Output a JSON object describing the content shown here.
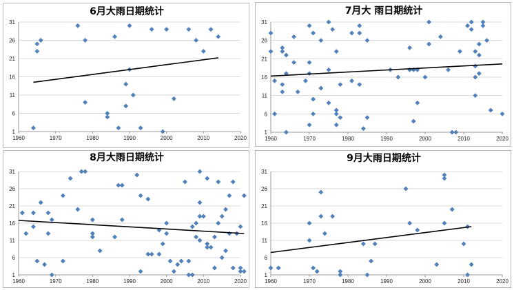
{
  "chart_data": [
    {
      "type": "scatter",
      "title": "6月大雨日期统计",
      "xlim": [
        1960,
        2020
      ],
      "ylim": [
        1,
        31
      ],
      "xticks": [
        1960,
        1970,
        1980,
        1990,
        2000,
        2010,
        2020
      ],
      "yticks": [
        1,
        6,
        11,
        16,
        21,
        26,
        31
      ],
      "grid": "horizontal",
      "points": [
        [
          1964,
          2
        ],
        [
          1965,
          23
        ],
        [
          1965,
          25
        ],
        [
          1966,
          26
        ],
        [
          1976,
          30
        ],
        [
          1978,
          26
        ],
        [
          1978,
          9
        ],
        [
          1984,
          6
        ],
        [
          1984,
          5
        ],
        [
          1986,
          27
        ],
        [
          1987,
          2
        ],
        [
          1989,
          14
        ],
        [
          1989,
          8
        ],
        [
          1990,
          30
        ],
        [
          1990,
          18
        ],
        [
          1991,
          11
        ],
        [
          1993,
          2
        ],
        [
          1996,
          29
        ],
        [
          1999,
          1
        ],
        [
          2000,
          29
        ],
        [
          2002,
          10
        ],
        [
          2006,
          29
        ],
        [
          2008,
          26
        ],
        [
          2010,
          23
        ],
        [
          2012,
          29
        ],
        [
          2014,
          27
        ]
      ],
      "trendline": [
        [
          1964,
          14.5
        ],
        [
          2014,
          21.2
        ]
      ]
    },
    {
      "type": "scatter",
      "title": "7月大 雨日期统计",
      "xlim": [
        1960,
        2020
      ],
      "ylim": [
        1,
        31
      ],
      "xticks": [
        1960,
        1970,
        1980,
        1990,
        2000,
        2010,
        2020
      ],
      "yticks": [
        1,
        6,
        11,
        16,
        21,
        26,
        31
      ],
      "grid": "horizontal",
      "points": [
        [
          1960,
          28
        ],
        [
          1960,
          23
        ],
        [
          1961,
          15
        ],
        [
          1961,
          6
        ],
        [
          1963,
          24
        ],
        [
          1963,
          23
        ],
        [
          1963,
          14
        ],
        [
          1963,
          12
        ],
        [
          1964,
          22
        ],
        [
          1964,
          17
        ],
        [
          1964,
          1
        ],
        [
          1966,
          27
        ],
        [
          1966,
          20
        ],
        [
          1967,
          12
        ],
        [
          1969,
          15
        ],
        [
          1970,
          30
        ],
        [
          1970,
          20
        ],
        [
          1970,
          17
        ],
        [
          1970,
          3
        ],
        [
          1971,
          28
        ],
        [
          1971,
          10
        ],
        [
          1971,
          6
        ],
        [
          1973,
          26
        ],
        [
          1973,
          13
        ],
        [
          1975,
          31
        ],
        [
          1975,
          18
        ],
        [
          1975,
          9
        ],
        [
          1976,
          29
        ],
        [
          1977,
          23
        ],
        [
          1977,
          7
        ],
        [
          1977,
          6
        ],
        [
          1977,
          3
        ],
        [
          1978,
          14
        ],
        [
          1978,
          5
        ],
        [
          1981,
          28
        ],
        [
          1981,
          15
        ],
        [
          1983,
          30
        ],
        [
          1983,
          28
        ],
        [
          1983,
          14
        ],
        [
          1984,
          2
        ],
        [
          1985,
          26
        ],
        [
          1985,
          5
        ],
        [
          1991,
          18
        ],
        [
          1993,
          16
        ],
        [
          1996,
          24
        ],
        [
          1996,
          18
        ],
        [
          1997,
          18
        ],
        [
          1997,
          4
        ],
        [
          1998,
          18
        ],
        [
          1998,
          9
        ],
        [
          2000,
          16
        ],
        [
          2001,
          31
        ],
        [
          2001,
          25
        ],
        [
          2004,
          27
        ],
        [
          2006,
          18
        ],
        [
          2007,
          1
        ],
        [
          2008,
          1
        ],
        [
          2009,
          23
        ],
        [
          2011,
          30
        ],
        [
          2012,
          31
        ],
        [
          2012,
          29
        ],
        [
          2013,
          23
        ],
        [
          2013,
          19
        ],
        [
          2013,
          16
        ],
        [
          2013,
          11
        ],
        [
          2014,
          22
        ],
        [
          2014,
          17
        ],
        [
          2014,
          25
        ],
        [
          2015,
          31
        ],
        [
          2015,
          30
        ],
        [
          2016,
          26
        ],
        [
          2017,
          7
        ],
        [
          2020,
          6
        ]
      ],
      "trendline": [
        [
          1960,
          16.3
        ],
        [
          2020,
          19.6
        ]
      ]
    },
    {
      "type": "scatter",
      "title": "8月大雨日期统计",
      "xlim": [
        1960,
        2020
      ],
      "ylim": [
        1,
        31
      ],
      "xticks": [
        1960,
        1970,
        1980,
        1990,
        2000,
        2010,
        2020
      ],
      "yticks": [
        1,
        6,
        11,
        16,
        21,
        26,
        31
      ],
      "grid": "horizontal",
      "points": [
        [
          1961,
          19
        ],
        [
          1962,
          13
        ],
        [
          1964,
          19
        ],
        [
          1964,
          15
        ],
        [
          1965,
          5
        ],
        [
          1966,
          22
        ],
        [
          1967,
          4
        ],
        [
          1968,
          19
        ],
        [
          1968,
          13
        ],
        [
          1969,
          17
        ],
        [
          1969,
          1
        ],
        [
          1972,
          24
        ],
        [
          1972,
          5
        ],
        [
          1974,
          29
        ],
        [
          1976,
          20
        ],
        [
          1977,
          31
        ],
        [
          1978,
          31
        ],
        [
          1980,
          17
        ],
        [
          1980,
          13
        ],
        [
          1980,
          12
        ],
        [
          1982,
          8
        ],
        [
          1986,
          12
        ],
        [
          1987,
          27
        ],
        [
          1988,
          27
        ],
        [
          1988,
          17
        ],
        [
          1992,
          30
        ],
        [
          1993,
          24
        ],
        [
          1993,
          2
        ],
        [
          1995,
          23
        ],
        [
          1995,
          7
        ],
        [
          1996,
          7
        ],
        [
          1998,
          14
        ],
        [
          1998,
          7
        ],
        [
          1999,
          10
        ],
        [
          2000,
          16
        ],
        [
          2000,
          13
        ],
        [
          2001,
          5
        ],
        [
          2002,
          2
        ],
        [
          2003,
          4
        ],
        [
          2004,
          5
        ],
        [
          2005,
          28
        ],
        [
          2006,
          1
        ],
        [
          2006,
          5
        ],
        [
          2007,
          15
        ],
        [
          2007,
          1
        ],
        [
          2008,
          16
        ],
        [
          2008,
          12
        ],
        [
          2009,
          31
        ],
        [
          2009,
          22
        ],
        [
          2009,
          18
        ],
        [
          2009,
          11
        ],
        [
          2010,
          18
        ],
        [
          2011,
          29
        ],
        [
          2011,
          10
        ],
        [
          2011,
          9
        ],
        [
          2012,
          9
        ],
        [
          2013,
          12
        ],
        [
          2013,
          3
        ],
        [
          2014,
          28
        ],
        [
          2014,
          16
        ],
        [
          2015,
          18
        ],
        [
          2015,
          6
        ],
        [
          2016,
          20
        ],
        [
          2016,
          8
        ],
        [
          2017,
          24
        ],
        [
          2017,
          13
        ],
        [
          2018,
          28
        ],
        [
          2018,
          3
        ],
        [
          2019,
          13
        ],
        [
          2020,
          3
        ],
        [
          2020,
          2
        ],
        [
          2020,
          15
        ],
        [
          2021,
          24
        ],
        [
          2021,
          2
        ]
      ],
      "trendline": [
        [
          1960,
          16.8
        ],
        [
          2021,
          13.0
        ]
      ]
    },
    {
      "type": "scatter",
      "title": "9月大雨日期统计",
      "xlim": [
        1960,
        2020
      ],
      "ylim": [
        1,
        31
      ],
      "xticks": [
        1960,
        1970,
        1980,
        1990,
        2000,
        2010,
        2020
      ],
      "yticks": [
        1,
        6,
        11,
        16,
        21,
        26,
        31
      ],
      "grid": "horizontal",
      "points": [
        [
          1960,
          3
        ],
        [
          1962,
          3
        ],
        [
          1970,
          16
        ],
        [
          1970,
          11
        ],
        [
          1971,
          3
        ],
        [
          1972,
          2
        ],
        [
          1973,
          18
        ],
        [
          1973,
          25
        ],
        [
          1974,
          13
        ],
        [
          1976,
          18
        ],
        [
          1978,
          2
        ],
        [
          1978,
          1
        ],
        [
          1984,
          10
        ],
        [
          1985,
          1
        ],
        [
          1986,
          5
        ],
        [
          1987,
          10
        ],
        [
          1995,
          26
        ],
        [
          1996,
          16
        ],
        [
          1998,
          14
        ],
        [
          2003,
          4
        ],
        [
          2005,
          30
        ],
        [
          2005,
          29
        ],
        [
          2005,
          16
        ],
        [
          2007,
          20
        ],
        [
          2010,
          10
        ],
        [
          2011,
          1
        ],
        [
          2011,
          15
        ],
        [
          2012,
          4
        ]
      ],
      "trendline": [
        [
          1960,
          7.5
        ],
        [
          2012,
          15.0
        ]
      ]
    }
  ]
}
